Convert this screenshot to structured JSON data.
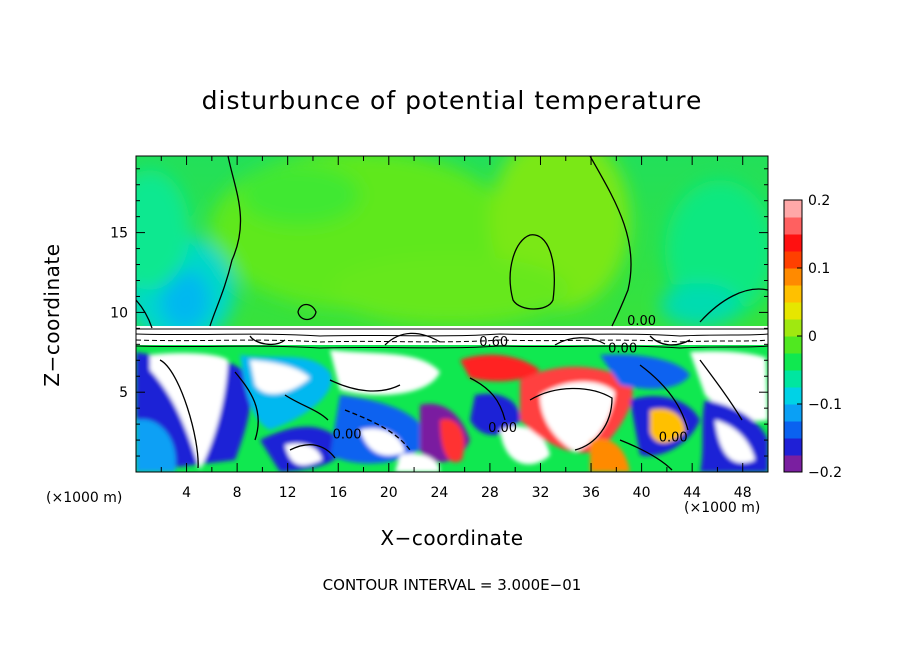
{
  "chart_data": {
    "type": "heatmap",
    "title": "disturbunce of potential temperature",
    "xlabel": "X−coordinate",
    "ylabel": "Z−coordinate",
    "x_unit_label": "(×1000 m)",
    "x_ticks": [
      "4",
      "8",
      "12",
      "16",
      "20",
      "24",
      "28",
      "32",
      "36",
      "40",
      "44",
      "48"
    ],
    "y_ticks": [
      "5",
      "10",
      "15"
    ],
    "xlim": [
      0,
      50
    ],
    "ylim": [
      0,
      19.8
    ],
    "colorbar": {
      "ticks": [
        "0.2",
        "0.1",
        "0",
        "−0.1",
        "−0.2"
      ],
      "range": [
        -0.2,
        0.2
      ],
      "colors": [
        "#7a1fa0",
        "#1f20d6",
        "#0a62f0",
        "#0aa0f5",
        "#00d2e6",
        "#00e6a0",
        "#10e850",
        "#50e820",
        "#a0e810",
        "#e6e600",
        "#ffc000",
        "#ff8a00",
        "#ff4000",
        "#ff1010",
        "#ff6060",
        "#ffa8a8"
      ]
    },
    "contour_labels": [
      {
        "text": "0.00",
        "x": 40.0,
        "z": 9.2
      },
      {
        "text": "0.60",
        "x": 28.3,
        "z": 7.9
      },
      {
        "text": "0.00",
        "x": 38.5,
        "z": 7.5
      },
      {
        "text": "0.00",
        "x": 16.7,
        "z": 2.1
      },
      {
        "text": "0.00",
        "x": 29.0,
        "z": 2.5
      },
      {
        "text": "0.00",
        "x": 42.5,
        "z": 1.9
      }
    ],
    "contour_interval": "CONTOUR INTERVAL = 3.000E−01"
  }
}
